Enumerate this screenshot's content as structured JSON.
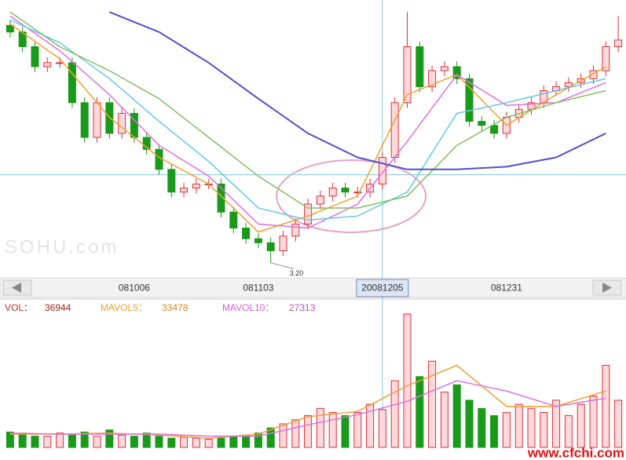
{
  "chart_data": {
    "type": "candlestick",
    "categories": [
      null,
      null,
      null,
      null,
      null,
      null,
      null,
      null,
      null,
      null,
      "081006",
      null,
      null,
      null,
      null,
      null,
      null,
      null,
      null,
      null,
      "081103",
      null,
      null,
      null,
      null,
      null,
      null,
      null,
      null,
      null,
      "20081205",
      null,
      null,
      null,
      null,
      null,
      null,
      null,
      null,
      null,
      "081231",
      null,
      null,
      null,
      null,
      null,
      null,
      null,
      null,
      null
    ],
    "open": [
      4.98,
      4.93,
      4.82,
      4.67,
      4.7,
      4.7,
      4.4,
      4.14,
      4.4,
      4.17,
      4.32,
      4.14,
      4.05,
      3.9,
      3.73,
      3.76,
      3.79,
      3.79,
      3.58,
      3.46,
      3.38,
      3.35,
      3.29,
      3.4,
      3.49,
      3.64,
      3.7,
      3.76,
      3.73,
      3.73,
      3.79,
      3.99,
      4.4,
      4.82,
      4.52,
      4.64,
      4.67,
      4.58,
      4.26,
      4.23,
      4.17,
      4.29,
      4.35,
      4.4,
      4.49,
      4.52,
      4.55,
      4.58,
      4.64,
      4.82
    ],
    "high": [
      5.02,
      4.97,
      4.86,
      4.74,
      4.74,
      4.74,
      4.44,
      4.44,
      4.44,
      4.36,
      4.36,
      4.18,
      4.09,
      3.94,
      3.8,
      3.83,
      3.83,
      3.83,
      3.62,
      3.5,
      3.42,
      3.39,
      3.44,
      3.53,
      3.68,
      3.74,
      3.8,
      3.8,
      3.77,
      3.83,
      4.03,
      4.44,
      5.08,
      4.86,
      4.68,
      4.71,
      4.71,
      4.62,
      4.3,
      4.27,
      4.33,
      4.39,
      4.44,
      4.53,
      4.56,
      4.59,
      4.62,
      4.68,
      4.86,
      5.05
    ],
    "low": [
      4.89,
      4.78,
      4.63,
      4.63,
      4.66,
      4.36,
      4.1,
      4.1,
      4.13,
      4.13,
      4.1,
      4.01,
      3.86,
      3.69,
      3.69,
      3.72,
      3.75,
      3.54,
      3.42,
      3.34,
      3.31,
      3.2,
      3.25,
      3.36,
      3.45,
      3.6,
      3.66,
      3.69,
      3.69,
      3.69,
      3.75,
      3.95,
      4.36,
      4.48,
      4.48,
      4.6,
      4.54,
      4.22,
      4.19,
      4.13,
      4.13,
      4.25,
      4.31,
      4.36,
      4.45,
      4.48,
      4.51,
      4.54,
      4.6,
      4.78
    ],
    "close": [
      4.93,
      4.82,
      4.67,
      4.7,
      4.7,
      4.4,
      4.14,
      4.4,
      4.17,
      4.32,
      4.14,
      4.05,
      3.9,
      3.73,
      3.76,
      3.79,
      3.79,
      3.58,
      3.46,
      3.38,
      3.35,
      3.29,
      3.4,
      3.49,
      3.64,
      3.7,
      3.76,
      3.73,
      3.73,
      3.79,
      3.99,
      4.4,
      4.82,
      4.52,
      4.64,
      4.67,
      4.58,
      4.26,
      4.23,
      4.17,
      4.29,
      4.35,
      4.4,
      4.49,
      4.52,
      4.55,
      4.58,
      4.64,
      4.82,
      4.87
    ],
    "low_labels": [
      null,
      null,
      null,
      null,
      null,
      null,
      null,
      null,
      null,
      null,
      null,
      null,
      null,
      null,
      null,
      null,
      null,
      null,
      null,
      null,
      null,
      "3.20",
      null,
      null,
      null,
      null,
      null,
      null,
      null,
      null,
      null,
      null,
      null,
      null,
      null,
      null,
      null,
      null,
      null,
      null,
      null,
      null,
      null,
      null,
      null,
      null,
      null,
      null,
      null,
      null
    ],
    "up_color": "#e0303a",
    "down_color": "#1a9a1a",
    "ylim": [
      3.11,
      5.17
    ],
    "lines": [
      {
        "color": "#f0a030",
        "x": [
          0,
          4,
          8,
          12,
          16,
          20,
          24,
          28,
          32,
          36,
          40,
          44,
          48
        ],
        "values": [
          4.99,
          4.73,
          4.29,
          3.99,
          3.79,
          3.43,
          3.55,
          3.7,
          4.46,
          4.61,
          4.23,
          4.46,
          4.67
        ]
      },
      {
        "color": "#e070e0",
        "x": [
          0,
          4,
          8,
          12,
          16,
          20,
          24,
          28,
          32,
          36,
          40,
          44,
          48
        ],
        "values": [
          5.05,
          4.79,
          4.46,
          4.08,
          3.85,
          3.49,
          3.46,
          3.64,
          4.11,
          4.61,
          4.38,
          4.4,
          4.55
        ]
      },
      {
        "color": "#60c8e8",
        "x": [
          0,
          4,
          8,
          12,
          16,
          20,
          24,
          28,
          32,
          36,
          40,
          44,
          48
        ],
        "values": [
          5.02,
          4.85,
          4.58,
          4.26,
          3.96,
          3.61,
          3.52,
          3.55,
          3.73,
          4.32,
          4.4,
          4.49,
          4.58
        ]
      },
      {
        "color": "#80c060",
        "x": [
          0,
          4,
          8,
          12,
          16,
          20,
          24,
          28,
          32,
          36,
          40,
          44,
          48
        ],
        "values": [
          5.08,
          4.82,
          4.64,
          4.43,
          4.14,
          3.85,
          3.61,
          3.61,
          3.7,
          4.08,
          4.29,
          4.4,
          4.49
        ]
      },
      {
        "color": "#5050d0",
        "x": [
          0,
          4,
          8,
          12,
          16,
          20,
          24,
          28,
          32,
          36,
          40,
          44,
          48
        ],
        "values": [
          null,
          null,
          5.08,
          4.93,
          4.7,
          4.43,
          4.17,
          3.99,
          3.9,
          3.9,
          3.92,
          3.99,
          4.17
        ]
      }
    ],
    "crosshair": {
      "x": 30,
      "y": 3.86
    },
    "watermark": "SOHU.com",
    "volume": {
      "values": [
        15000,
        14000,
        11000,
        11000,
        14000,
        12000,
        15000,
        11000,
        17000,
        12000,
        11000,
        14000,
        11000,
        9000,
        10000,
        9000,
        8000,
        9000,
        11000,
        12000,
        14000,
        19000,
        23000,
        27000,
        31000,
        38000,
        34000,
        31000,
        34000,
        42000,
        36944,
        65000,
        130000,
        69000,
        84000,
        54000,
        61000,
        46000,
        38000,
        31000,
        34000,
        42000,
        38000,
        34000,
        46000,
        31000,
        42000,
        50000,
        80000,
        46000
      ],
      "ylim": [
        0,
        130000
      ],
      "lines": [
        {
          "color": "#f0a030",
          "x": [
            0,
            4,
            8,
            12,
            16,
            20,
            24,
            28,
            32,
            36,
            40,
            44,
            48
          ],
          "values": [
            13000,
            13000,
            14000,
            12000,
            9000,
            13000,
            30000,
            35000,
            60000,
            80000,
            40000,
            40000,
            55000
          ]
        },
        {
          "color": "#e070e0",
          "x": [
            0,
            4,
            8,
            12,
            16,
            20,
            24,
            28,
            32,
            36,
            40,
            44,
            48
          ],
          "values": [
            14000,
            13000,
            13000,
            13000,
            11000,
            11000,
            22000,
            32000,
            45000,
            65000,
            55000,
            40000,
            48000
          ]
        }
      ]
    },
    "readout": {
      "vol_label": "VOL：",
      "mavol5_label": "MAVOL5：",
      "mavol5": 33478,
      "mavol10_label": "MAVOL10：",
      "mavol10": 27313
    },
    "site": "www.cfchi.com"
  }
}
